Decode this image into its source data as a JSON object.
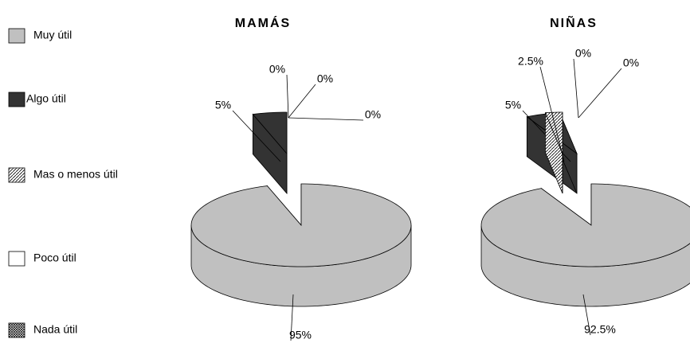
{
  "chart_data": {
    "type": "pie",
    "categories": [
      "Muy útil",
      "Algo útil",
      "Mas o menos útil",
      "Poco útil",
      "Nada útil"
    ],
    "colors": [
      "#c0c0c0",
      "#333333",
      "#ffffff",
      "#ffffff",
      "#ffffff"
    ],
    "patterns": [
      null,
      null,
      "diagonal",
      null,
      "crosshatch"
    ],
    "series": [
      {
        "name": "MAMÁS",
        "values": [
          95,
          5,
          0,
          0,
          0
        ],
        "value_labels": [
          "95%",
          "5%",
          "0%",
          "0%",
          "0%"
        ]
      },
      {
        "name": "NIÑAS",
        "values": [
          92.5,
          5,
          2.5,
          0,
          0
        ],
        "value_labels": [
          "92.5%",
          "5%",
          "2.5%",
          "0%",
          "0%"
        ]
      }
    ]
  }
}
